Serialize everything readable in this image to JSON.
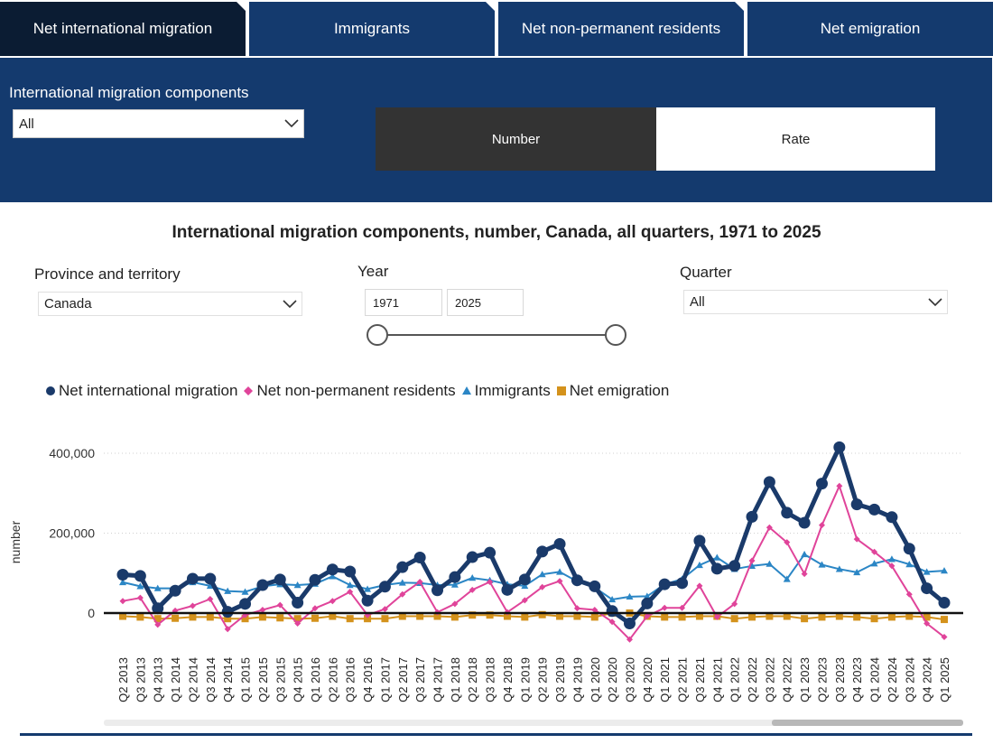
{
  "tabs": [
    {
      "label": "Net international migration",
      "active": true
    },
    {
      "label": "Immigrants",
      "active": false
    },
    {
      "label": "Net non-permanent residents",
      "active": false
    },
    {
      "label": "Net emigration",
      "active": false
    }
  ],
  "panel": {
    "components_label": "International migration components",
    "components_value": "All",
    "toggle": [
      {
        "label": "Number",
        "selected": true
      },
      {
        "label": "Rate",
        "selected": false
      }
    ]
  },
  "filters": {
    "province_label": "Province and territory",
    "province_value": "Canada",
    "year_label": "Year",
    "year_start": "1971",
    "year_end": "2025",
    "quarter_label": "Quarter",
    "quarter_value": "All"
  },
  "colors": {
    "tab_bg": "#143a6e",
    "tab_active": "#0b1c33",
    "toggle_selected": "#333333",
    "net_international_migration": "#1a3a6a",
    "net_non_permanent_residents": "#e0449a",
    "immigrants": "#2b86c5",
    "net_emigration": "#d4921c"
  },
  "chart_data": {
    "type": "line",
    "title": "International migration components, number, Canada, all quarters, 1971 to 2025",
    "ylabel": "number",
    "xlabel": "",
    "ylim": [
      -80000,
      440000
    ],
    "yticks": [
      0,
      200000,
      400000
    ],
    "ytick_labels": [
      "0",
      "200,000",
      "400,000"
    ],
    "grid": true,
    "legend_position": "top-left",
    "categories": [
      "Q2 2013",
      "Q3 2013",
      "Q4 2013",
      "Q1 2014",
      "Q2 2014",
      "Q3 2014",
      "Q4 2014",
      "Q1 2015",
      "Q2 2015",
      "Q3 2015",
      "Q4 2015",
      "Q1 2016",
      "Q2 2016",
      "Q3 2016",
      "Q4 2016",
      "Q1 2017",
      "Q2 2017",
      "Q3 2017",
      "Q4 2017",
      "Q1 2018",
      "Q2 2018",
      "Q3 2018",
      "Q4 2018",
      "Q1 2019",
      "Q2 2019",
      "Q3 2019",
      "Q4 2019",
      "Q1 2020",
      "Q2 2020",
      "Q3 2020",
      "Q4 2020",
      "Q1 2021",
      "Q2 2021",
      "Q3 2021",
      "Q4 2021",
      "Q1 2022",
      "Q2 2022",
      "Q3 2022",
      "Q4 2022",
      "Q1 2023",
      "Q2 2023",
      "Q3 2023",
      "Q4 2023",
      "Q1 2024",
      "Q2 2024",
      "Q3 2024",
      "Q4 2024",
      "Q1 2025"
    ],
    "series": [
      {
        "name": "Net international migration",
        "key": "net_international_migration",
        "marker": "circle",
        "values": [
          96000,
          93000,
          12000,
          56000,
          86000,
          86000,
          3000,
          23000,
          70000,
          84000,
          26000,
          83000,
          109000,
          104000,
          31000,
          66000,
          115000,
          139000,
          57000,
          90000,
          140000,
          151000,
          58000,
          84000,
          154000,
          173000,
          82000,
          67000,
          5000,
          -26000,
          24000,
          72000,
          75000,
          181000,
          111000,
          118000,
          241000,
          328000,
          251000,
          226000,
          324000,
          415000,
          272000,
          259000,
          240000,
          161000,
          62000,
          26000
        ]
      },
      {
        "name": "Net non-permanent residents",
        "key": "net_non_permanent_residents",
        "marker": "diamond",
        "values": [
          30000,
          38000,
          -29000,
          6000,
          18000,
          35000,
          -40000,
          -5000,
          8000,
          20000,
          -26000,
          12000,
          30000,
          53000,
          -5000,
          10000,
          47000,
          78000,
          2000,
          23000,
          58000,
          78000,
          2000,
          32000,
          65000,
          80000,
          12000,
          8000,
          -22000,
          -66000,
          -8000,
          13000,
          13000,
          68000,
          -10000,
          23000,
          131000,
          214000,
          177000,
          98000,
          220000,
          318000,
          185000,
          153000,
          118000,
          47000,
          -26000,
          -60000
        ]
      },
      {
        "name": "Immigrants",
        "key": "immigrants",
        "marker": "triangle",
        "values": [
          77000,
          67000,
          62000,
          62000,
          77000,
          68000,
          55000,
          53000,
          67000,
          72000,
          70000,
          73000,
          92000,
          70000,
          60000,
          70000,
          76000,
          75000,
          70000,
          71000,
          88000,
          82000,
          72000,
          68000,
          97000,
          103000,
          79000,
          64000,
          34000,
          41000,
          42000,
          72000,
          85000,
          120000,
          139000,
          110000,
          118000,
          123000,
          85000,
          147000,
          121000,
          110000,
          102000,
          124000,
          135000,
          122000,
          103000,
          106000
        ]
      },
      {
        "name": "Net emigration",
        "key": "net_emigration",
        "marker": "square",
        "values": [
          -8000,
          -10000,
          -14000,
          -13000,
          -10000,
          -10000,
          -14000,
          -14000,
          -10000,
          -12000,
          -14000,
          -13000,
          -8000,
          -14000,
          -14000,
          -14000,
          -8000,
          -8000,
          -8000,
          -10000,
          -5000,
          -5000,
          -8000,
          -10000,
          -4000,
          -8000,
          -8000,
          -10000,
          0,
          0,
          -8000,
          -10000,
          -10000,
          -8000,
          -8000,
          -14000,
          -10000,
          -8000,
          -8000,
          -14000,
          -10000,
          -8000,
          -10000,
          -14000,
          -10000,
          -8000,
          -10000,
          -16000
        ]
      }
    ]
  }
}
